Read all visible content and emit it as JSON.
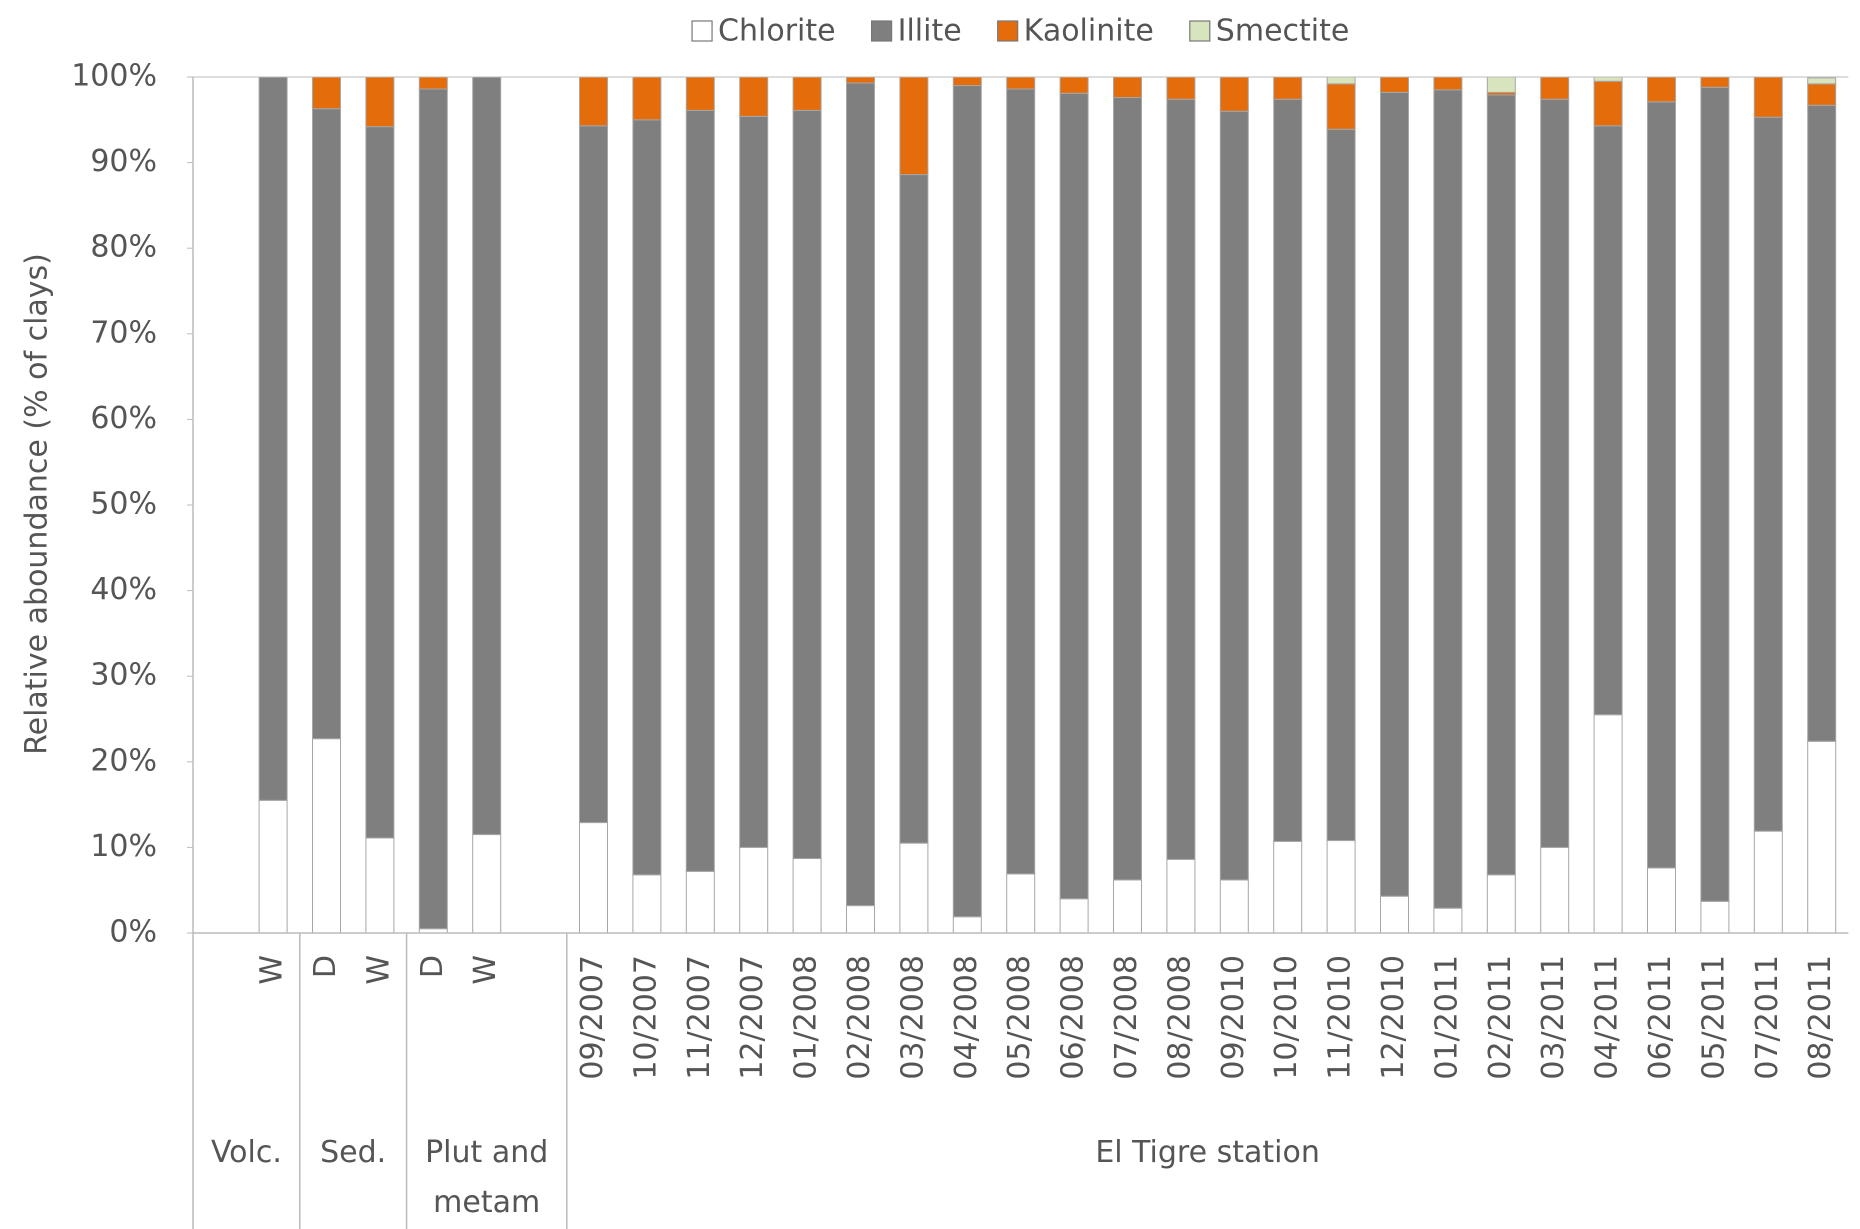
{
  "chart_data": {
    "type": "stacked-bar",
    "y_label": "Relative aboundance (% of clays)",
    "legend": "top",
    "grid": false,
    "ylim": [
      0,
      100
    ],
    "yticks": [
      {
        "value": 0,
        "label": "0%"
      },
      {
        "value": 10,
        "label": "10%"
      },
      {
        "value": 20,
        "label": "20%"
      },
      {
        "value": 30,
        "label": "30%"
      },
      {
        "value": 40,
        "label": "40%"
      },
      {
        "value": 50,
        "label": "50%"
      },
      {
        "value": 60,
        "label": "60%"
      },
      {
        "value": 70,
        "label": "70%"
      },
      {
        "value": 80,
        "label": "80%"
      },
      {
        "value": 90,
        "label": "90%"
      },
      {
        "value": 100,
        "label": "100%"
      }
    ],
    "categories": [
      null,
      "W",
      "D",
      "W",
      "D",
      "W",
      null,
      "09/2007",
      "10/2007",
      "11/2007",
      "12/2007",
      "01/2008",
      "02/2008",
      "03/2008",
      "04/2008",
      "05/2008",
      "06/2008",
      "07/2008",
      "08/2008",
      "09/2010",
      "10/2010",
      "11/2010",
      "12/2010",
      "01/2011",
      "02/2011",
      "03/2011",
      "04/2011",
      "06/2011",
      "05/2011",
      "07/2011",
      "08/2011"
    ],
    "category_groups": [
      "Volc.",
      "Volc.",
      "Sed.",
      "Sed.",
      "Plut and metam",
      "Plut and metam",
      "Plut and metam",
      "El Tigre station",
      "El Tigre station",
      "El Tigre station",
      "El Tigre station",
      "El Tigre station",
      "El Tigre station",
      "El Tigre station",
      "El Tigre station",
      "El Tigre station",
      "El Tigre station",
      "El Tigre station",
      "El Tigre station",
      "El Tigre station",
      "El Tigre station",
      "El Tigre station",
      "El Tigre station",
      "El Tigre station",
      "El Tigre station",
      "El Tigre station",
      "El Tigre station",
      "El Tigre station",
      "El Tigre station",
      "El Tigre station",
      "El Tigre station"
    ],
    "series": [
      {
        "name": "Chlorite",
        "color": "#ffffff",
        "values": [
          null,
          15.5,
          22.7,
          11.1,
          0.5,
          11.5,
          null,
          12.9,
          6.8,
          7.2,
          10,
          8.7,
          3.2,
          10.5,
          1.9,
          6.9,
          4.0,
          6.2,
          8.6,
          6.2,
          10.7,
          10.8,
          4.3,
          2.9,
          6.8,
          10,
          25.5,
          7.6,
          3.7,
          11.9,
          22.4
        ]
      },
      {
        "name": "Illite",
        "color": "#7f7f7f",
        "values": [
          null,
          84.5,
          73.6,
          83.1,
          98.1,
          88.5,
          null,
          81.4,
          88.2,
          88.9,
          85.4,
          87.4,
          96.1,
          78.1,
          97.1,
          91.7,
          94.1,
          91.4,
          88.8,
          89.8,
          86.7,
          83.1,
          93.9,
          95.6,
          91.1,
          87.4,
          68.8,
          89.5,
          95.1,
          83.4,
          74.3
        ]
      },
      {
        "name": "Kaolinite",
        "color": "#e46c0a",
        "values": [
          null,
          0,
          3.7,
          5.8,
          1.4,
          0,
          null,
          5.7,
          5.0,
          3.9,
          4.6,
          3.9,
          0.7,
          11.4,
          1.0,
          1.4,
          1.9,
          2.4,
          2.6,
          4.0,
          2.6,
          5.3,
          1.8,
          1.5,
          0.3,
          2.6,
          5.2,
          2.9,
          1.2,
          4.7,
          2.5
        ]
      },
      {
        "name": "Smectite",
        "color": "#d7e4bd",
        "values": [
          null,
          0,
          0,
          0,
          0,
          0,
          null,
          0,
          0,
          0,
          0,
          0,
          0,
          0,
          0,
          0,
          0,
          0,
          0,
          0,
          0,
          0.8,
          0,
          0,
          1.8,
          0,
          0.5,
          0,
          0,
          0,
          0.7
        ]
      }
    ]
  }
}
